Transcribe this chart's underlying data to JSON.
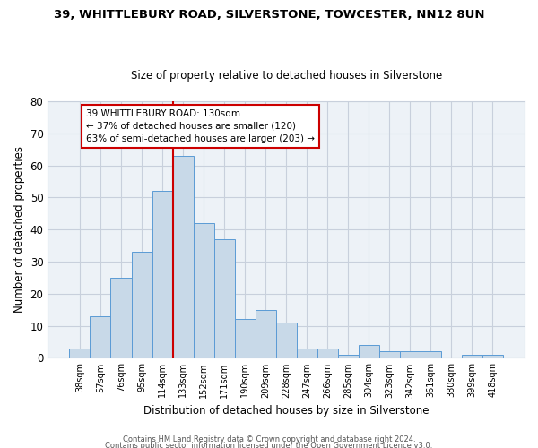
{
  "title1": "39, WHITTLEBURY ROAD, SILVERSTONE, TOWCESTER, NN12 8UN",
  "title2": "Size of property relative to detached houses in Silverstone",
  "xlabel": "Distribution of detached houses by size in Silverstone",
  "ylabel": "Number of detached properties",
  "categories": [
    "38sqm",
    "57sqm",
    "76sqm",
    "95sqm",
    "114sqm",
    "133sqm",
    "152sqm",
    "171sqm",
    "190sqm",
    "209sqm",
    "228sqm",
    "247sqm",
    "266sqm",
    "285sqm",
    "304sqm",
    "323sqm",
    "342sqm",
    "361sqm",
    "380sqm",
    "399sqm",
    "418sqm"
  ],
  "values": [
    3,
    13,
    25,
    33,
    52,
    63,
    42,
    37,
    12,
    15,
    11,
    3,
    3,
    1,
    4,
    2,
    2,
    2,
    0,
    1,
    1
  ],
  "bar_color": "#c8d9e8",
  "bar_edge_color": "#5b9bd5",
  "vline_index": 5,
  "vline_color": "#cc0000",
  "annotation_line1": "39 WHITTLEBURY ROAD: 130sqm",
  "annotation_line2": "← 37% of detached houses are smaller (120)",
  "annotation_line3": "63% of semi-detached houses are larger (203) →",
  "annotation_box_color": "#ffffff",
  "annotation_box_edge": "#cc0000",
  "ylim": [
    0,
    80
  ],
  "yticks": [
    0,
    10,
    20,
    30,
    40,
    50,
    60,
    70,
    80
  ],
  "grid_color": "#c8d0dc",
  "footer1": "Contains HM Land Registry data © Crown copyright and database right 2024.",
  "footer2": "Contains public sector information licensed under the Open Government Licence v3.0.",
  "bg_color": "#edf2f7"
}
